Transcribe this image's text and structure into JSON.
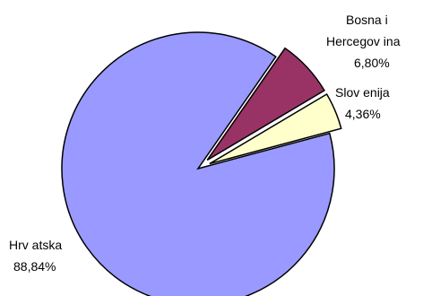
{
  "chart_data": {
    "type": "pie",
    "exploded": true,
    "legend": "none",
    "slices": [
      {
        "label_lines": [
          "Hrv atska"
        ],
        "value_text": "88,84%",
        "value": 88.84,
        "color": "#9999FF"
      },
      {
        "label_lines": [
          "Bosna i",
          "Hercegov ina"
        ],
        "value_text": "6,80%",
        "value": 6.8,
        "color": "#993366"
      },
      {
        "label_lines": [
          "Slov enija"
        ],
        "value_text": "4,36%",
        "value": 4.36,
        "color": "#FFFFCC"
      }
    ]
  }
}
